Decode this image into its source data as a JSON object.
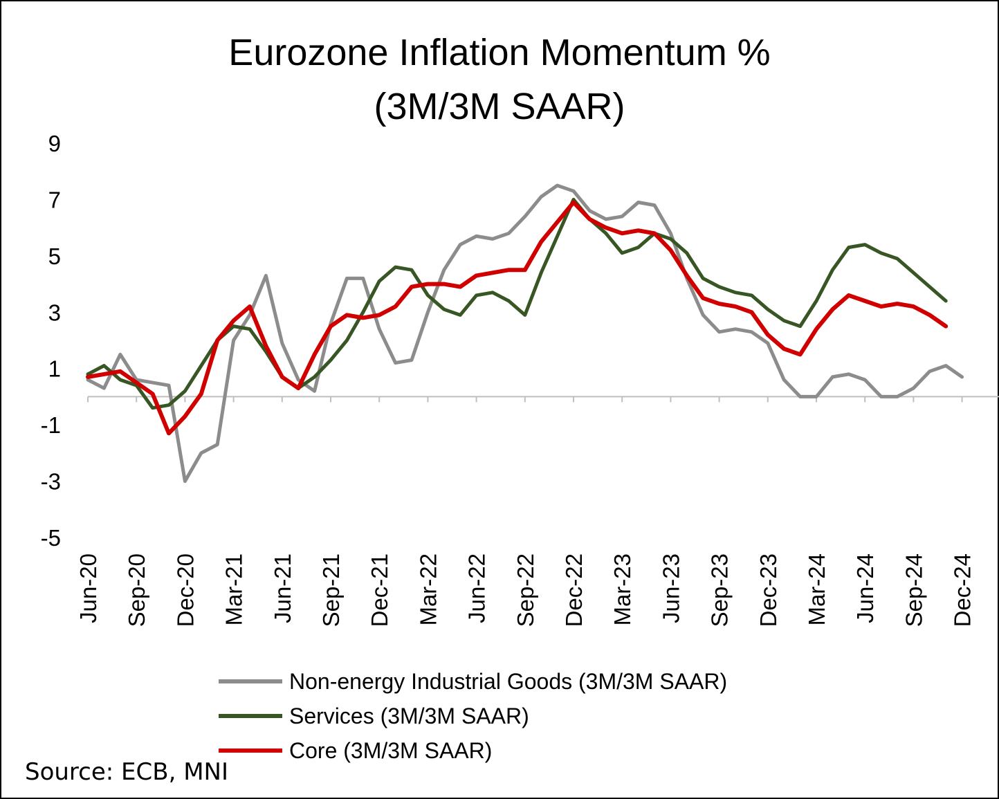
{
  "chart_data": {
    "type": "line",
    "title_line1": "Eurozone Inflation Momentum %",
    "title_line2": "(3M/3M SAAR)",
    "ylim": [
      -5,
      9
    ],
    "y_ticks": [
      "9",
      "7",
      "5",
      "3",
      "1",
      "-1",
      "-3",
      "-5"
    ],
    "y_tick_values": [
      9,
      7,
      5,
      3,
      1,
      -1,
      -3,
      -5
    ],
    "x_tick_labels": [
      "Jun-20",
      "Sep-20",
      "Dec-20",
      "Mar-21",
      "Jun-21",
      "Sep-21",
      "Dec-21",
      "Mar-22",
      "Jun-22",
      "Sep-22",
      "Dec-22",
      "Mar-23",
      "Jun-23",
      "Sep-23",
      "Dec-23",
      "Mar-24",
      "Jun-24",
      "Sep-24",
      "Dec-24"
    ],
    "x_start": "Jun-20",
    "n_months": 56,
    "series": [
      {
        "name": "Non-energy Industrial Goods (3M/3M SAAR)",
        "color": "#8c8c8c",
        "values": [
          0.6,
          0.3,
          1.5,
          0.6,
          0.5,
          0.4,
          -3.0,
          -2.0,
          -1.7,
          2.0,
          2.9,
          4.3,
          1.9,
          0.6,
          0.2,
          2.6,
          4.2,
          4.2,
          2.4,
          1.2,
          1.3,
          3.0,
          4.5,
          5.4,
          5.7,
          5.6,
          5.8,
          6.4,
          7.1,
          7.5,
          7.3,
          6.6,
          6.3,
          6.4,
          6.9,
          6.8,
          5.8,
          4.2,
          2.9,
          2.3,
          2.4,
          2.3,
          1.9,
          0.6,
          0.0,
          0.0,
          0.7,
          0.8,
          0.6,
          0.0,
          0.0,
          0.3,
          0.9,
          1.1,
          0.7
        ]
      },
      {
        "name": "Services (3M/3M SAAR)",
        "color": "#375623",
        "values": [
          0.8,
          1.1,
          0.6,
          0.4,
          -0.4,
          -0.3,
          0.2,
          1.1,
          2.0,
          2.5,
          2.4,
          1.6,
          0.7,
          0.3,
          0.7,
          1.3,
          2.0,
          3.0,
          4.1,
          4.6,
          4.5,
          3.6,
          3.1,
          2.9,
          3.6,
          3.7,
          3.4,
          2.9,
          4.4,
          5.7,
          7.0,
          6.3,
          5.8,
          5.1,
          5.3,
          5.8,
          5.6,
          5.1,
          4.2,
          3.9,
          3.7,
          3.6,
          3.1,
          2.7,
          2.5,
          3.4,
          4.5,
          5.3,
          5.4,
          5.1,
          4.9,
          4.4,
          3.9,
          3.4
        ]
      },
      {
        "name": "Core (3M/3M SAAR)",
        "color": "#d00000",
        "values": [
          0.7,
          0.8,
          0.9,
          0.5,
          0.1,
          -1.3,
          -0.7,
          0.1,
          2.0,
          2.7,
          3.2,
          1.8,
          0.7,
          0.3,
          1.5,
          2.5,
          2.9,
          2.8,
          2.9,
          3.2,
          3.9,
          4.0,
          4.0,
          3.9,
          4.3,
          4.4,
          4.5,
          4.5,
          5.5,
          6.2,
          6.9,
          6.3,
          6.0,
          5.8,
          5.9,
          5.8,
          5.2,
          4.3,
          3.5,
          3.3,
          3.2,
          3.0,
          2.2,
          1.7,
          1.5,
          2.4,
          3.1,
          3.6,
          3.4,
          3.2,
          3.3,
          3.2,
          2.9,
          2.5
        ]
      }
    ]
  },
  "source": "Source: ECB, MNI"
}
